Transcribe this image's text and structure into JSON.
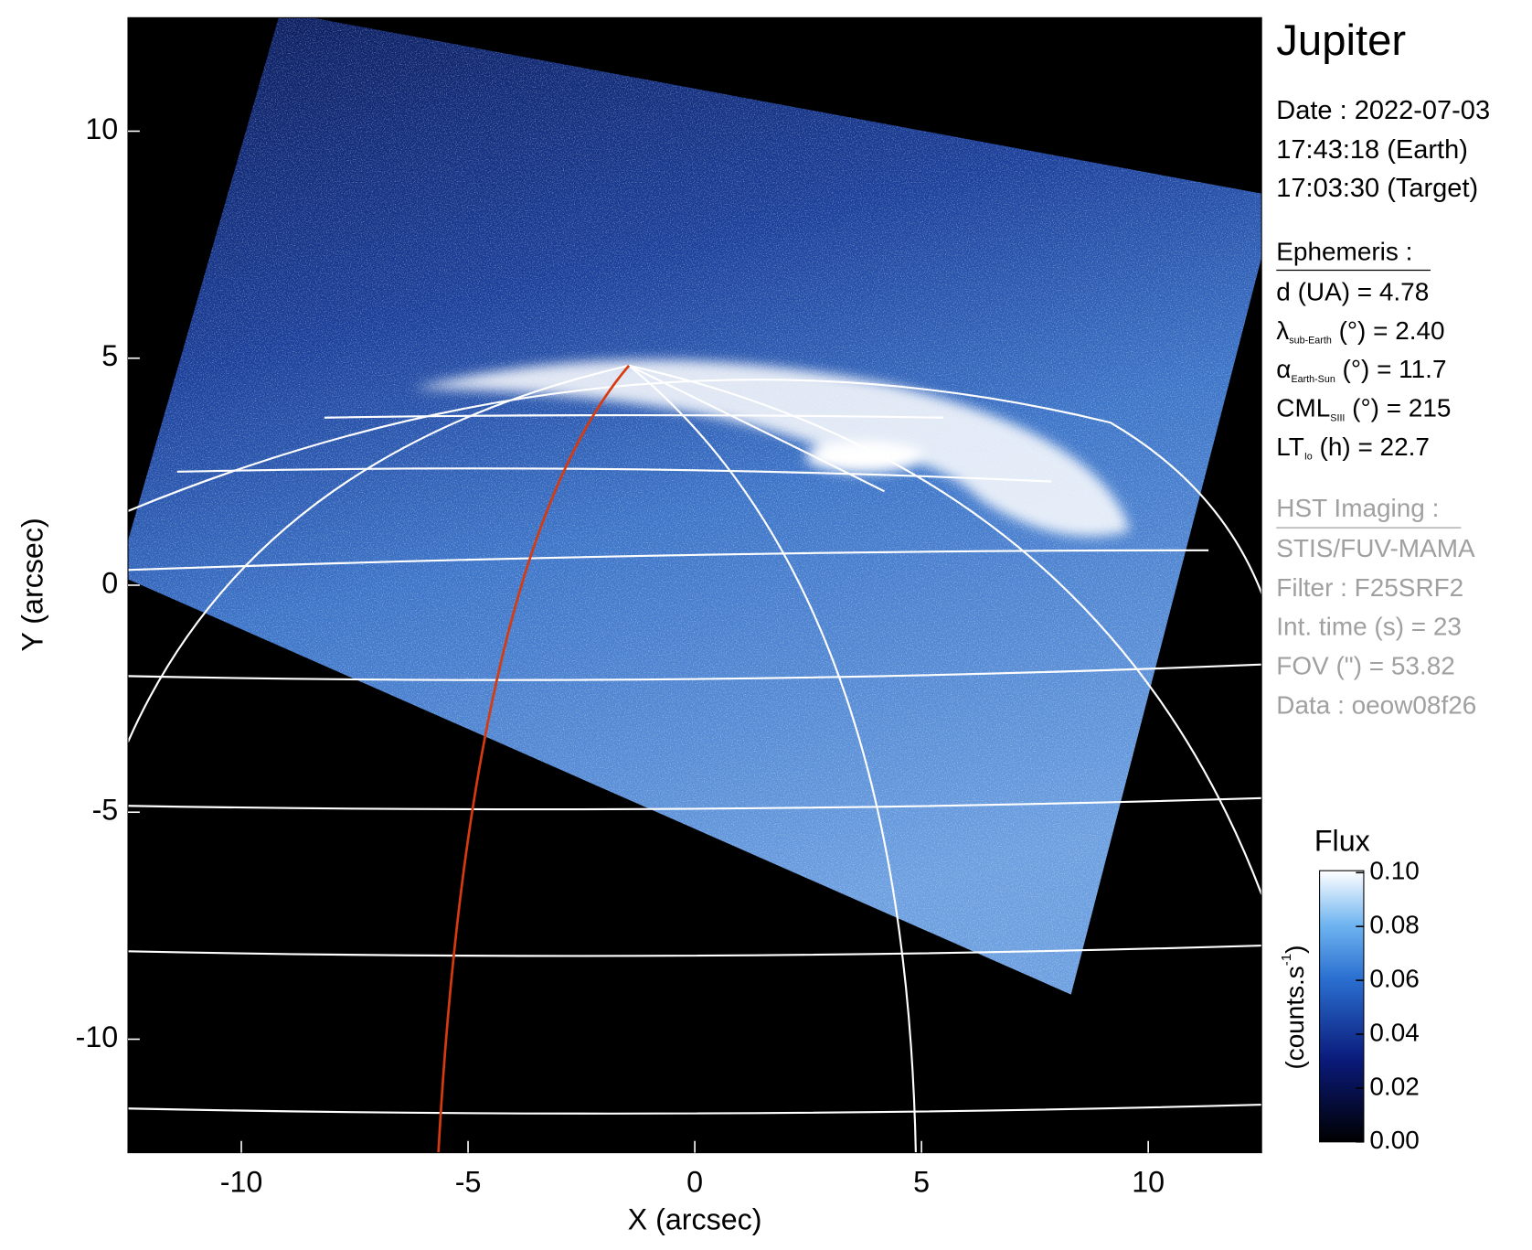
{
  "chart_data": {
    "type": "image",
    "xlabel": "X (arcsec)",
    "ylabel": "Y (arcsec)",
    "xlim": [
      -12.5,
      12.5
    ],
    "ylim": [
      -12.5,
      12.5
    ],
    "xticks": [
      -10,
      -5,
      0,
      5,
      10
    ],
    "yticks": [
      -10,
      -5,
      0,
      5,
      10
    ],
    "colorbar": {
      "title": "Flux",
      "unit": "(counts.s",
      "unit_sup": "-1",
      "unit_end": ")",
      "clim": [
        0,
        0.1
      ],
      "ticks": [
        {
          "value": 0,
          "label": "0.00"
        },
        {
          "value": 0.02,
          "label": "0.02"
        },
        {
          "value": 0.04,
          "label": "0.04"
        },
        {
          "value": 0.06,
          "label": "0.06"
        },
        {
          "value": 0.08,
          "label": "0.08"
        },
        {
          "value": 0.1,
          "label": "0.10"
        }
      ]
    },
    "info": {
      "title": "Jupiter",
      "date": "Date : 2022-07-03",
      "earth_time": "17:43:18 (Earth)",
      "target_time": "17:03:30 (Target)",
      "ephemeris_header": "Ephemeris :",
      "ephemeris": [
        {
          "symbol": "d (UA)    = 4.78"
        },
        {
          "symbol": "λ",
          "sub": "sub-Earth",
          "rest": " (°) = 2.40"
        },
        {
          "symbol": "α",
          "sub": "Earth-Sun",
          "rest": " (°) = 11.7"
        },
        {
          "symbol": "CML",
          "sub": "SIII",
          "rest": " (°) = 215"
        },
        {
          "symbol": "LT",
          "sub": "Io",
          "rest": " (h) = 22.7"
        }
      ],
      "hst_header": "HST Imaging :",
      "hst": [
        "STIS/FUV-MAMA",
        "Filter : F25SRF2",
        "Int. time (s) = 23",
        "FOV (\") = 53.82",
        "Data : oeow08f26"
      ]
    }
  }
}
